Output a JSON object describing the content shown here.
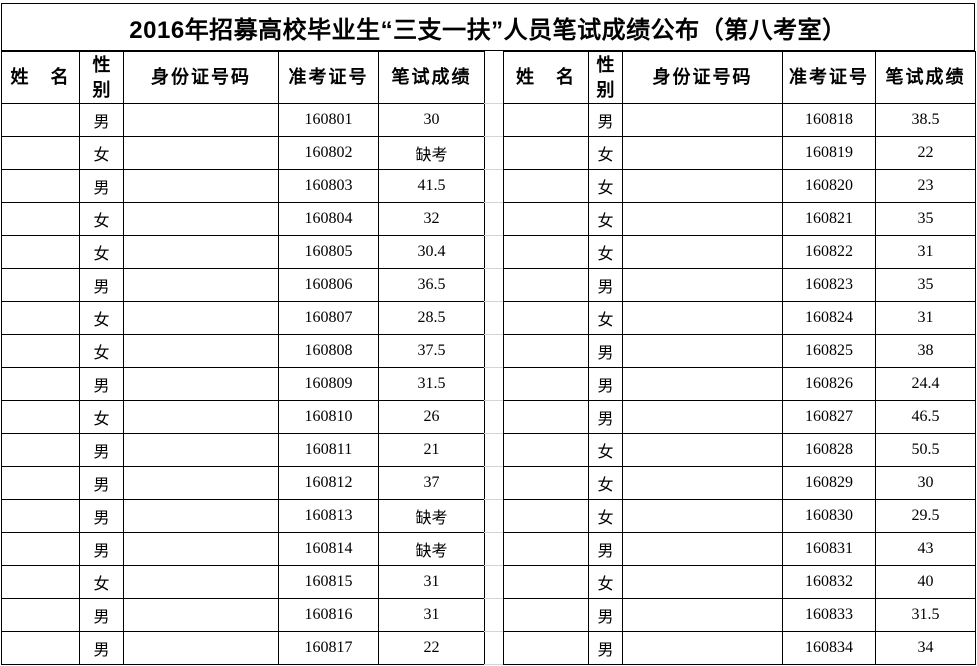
{
  "title": "2016年招募高校毕业生“三支一扶”人员笔试成绩公布（第八考室）",
  "columns": {
    "name": "姓　名",
    "gender": "性别",
    "id_number": "身份证号码",
    "ticket_no": "准考证号",
    "score": "笔试成绩"
  },
  "tables": [
    {
      "rows": [
        {
          "name": "",
          "gender": "男",
          "id_number": "",
          "ticket_no": "160801",
          "score": "30"
        },
        {
          "name": "",
          "gender": "女",
          "id_number": "",
          "ticket_no": "160802",
          "score": "缺考"
        },
        {
          "name": "",
          "gender": "男",
          "id_number": "",
          "ticket_no": "160803",
          "score": "41.5"
        },
        {
          "name": "",
          "gender": "女",
          "id_number": "",
          "ticket_no": "160804",
          "score": "32"
        },
        {
          "name": "",
          "gender": "女",
          "id_number": "",
          "ticket_no": "160805",
          "score": "30.4"
        },
        {
          "name": "",
          "gender": "男",
          "id_number": "",
          "ticket_no": "160806",
          "score": "36.5"
        },
        {
          "name": "",
          "gender": "女",
          "id_number": "",
          "ticket_no": "160807",
          "score": "28.5"
        },
        {
          "name": "",
          "gender": "女",
          "id_number": "",
          "ticket_no": "160808",
          "score": "37.5"
        },
        {
          "name": "",
          "gender": "男",
          "id_number": "",
          "ticket_no": "160809",
          "score": "31.5"
        },
        {
          "name": "",
          "gender": "女",
          "id_number": "",
          "ticket_no": "160810",
          "score": "26"
        },
        {
          "name": "",
          "gender": "男",
          "id_number": "",
          "ticket_no": "160811",
          "score": "21"
        },
        {
          "name": "",
          "gender": "男",
          "id_number": "",
          "ticket_no": "160812",
          "score": "37"
        },
        {
          "name": "",
          "gender": "男",
          "id_number": "",
          "ticket_no": "160813",
          "score": "缺考"
        },
        {
          "name": "",
          "gender": "男",
          "id_number": "",
          "ticket_no": "160814",
          "score": "缺考"
        },
        {
          "name": "",
          "gender": "女",
          "id_number": "",
          "ticket_no": "160815",
          "score": "31"
        },
        {
          "name": "",
          "gender": "男",
          "id_number": "",
          "ticket_no": "160816",
          "score": "31"
        },
        {
          "name": "",
          "gender": "男",
          "id_number": "",
          "ticket_no": "160817",
          "score": "22"
        }
      ]
    },
    {
      "rows": [
        {
          "name": "",
          "gender": "男",
          "id_number": "",
          "ticket_no": "160818",
          "score": "38.5"
        },
        {
          "name": "",
          "gender": "女",
          "id_number": "",
          "ticket_no": "160819",
          "score": "22"
        },
        {
          "name": "",
          "gender": "女",
          "id_number": "",
          "ticket_no": "160820",
          "score": "23"
        },
        {
          "name": "",
          "gender": "女",
          "id_number": "",
          "ticket_no": "160821",
          "score": "35"
        },
        {
          "name": "",
          "gender": "女",
          "id_number": "",
          "ticket_no": "160822",
          "score": "31"
        },
        {
          "name": "",
          "gender": "男",
          "id_number": "",
          "ticket_no": "160823",
          "score": "35"
        },
        {
          "name": "",
          "gender": "女",
          "id_number": "",
          "ticket_no": "160824",
          "score": "31"
        },
        {
          "name": "",
          "gender": "男",
          "id_number": "",
          "ticket_no": "160825",
          "score": "38"
        },
        {
          "name": "",
          "gender": "男",
          "id_number": "",
          "ticket_no": "160826",
          "score": "24.4"
        },
        {
          "name": "",
          "gender": "男",
          "id_number": "",
          "ticket_no": "160827",
          "score": "46.5"
        },
        {
          "name": "",
          "gender": "女",
          "id_number": "",
          "ticket_no": "160828",
          "score": "50.5"
        },
        {
          "name": "",
          "gender": "女",
          "id_number": "",
          "ticket_no": "160829",
          "score": "30"
        },
        {
          "name": "",
          "gender": "女",
          "id_number": "",
          "ticket_no": "160830",
          "score": "29.5"
        },
        {
          "name": "",
          "gender": "男",
          "id_number": "",
          "ticket_no": "160831",
          "score": "43"
        },
        {
          "name": "",
          "gender": "女",
          "id_number": "",
          "ticket_no": "160832",
          "score": "40"
        },
        {
          "name": "",
          "gender": "男",
          "id_number": "",
          "ticket_no": "160833",
          "score": "31.5"
        },
        {
          "name": "",
          "gender": "男",
          "id_number": "",
          "ticket_no": "160834",
          "score": "34"
        }
      ]
    }
  ],
  "colors": {
    "border": "#000000",
    "faint_gridline": "#d4d4d4",
    "background": "#ffffff"
  }
}
